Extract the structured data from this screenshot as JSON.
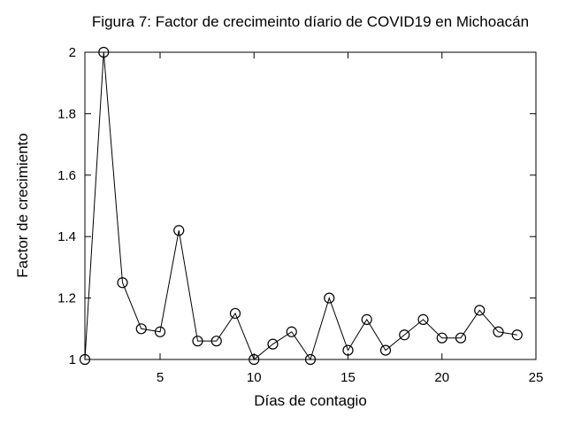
{
  "chart_data": {
    "type": "line",
    "title": "Figura 7: Factor de crecimeinto díario de COVID19 en Michoacán",
    "xlabel": "Días de contagio",
    "ylabel": "Factor de crecimiento",
    "xlim": [
      1,
      25
    ],
    "ylim": [
      1,
      2
    ],
    "xticks": [
      5,
      10,
      15,
      20,
      25
    ],
    "yticks": [
      1,
      1.2,
      1.4,
      1.6,
      1.8,
      2
    ],
    "ytick_labels": [
      "1",
      "1.2",
      "1.4",
      "1.6",
      "1.8",
      "2"
    ],
    "grid": false,
    "marker": "circle",
    "line_color": "#000000",
    "x": [
      1,
      2,
      3,
      4,
      5,
      6,
      7,
      8,
      9,
      10,
      11,
      12,
      13,
      14,
      15,
      16,
      17,
      18,
      19,
      20,
      21,
      22,
      23,
      24
    ],
    "values": [
      1.0,
      2.0,
      1.25,
      1.1,
      1.09,
      1.42,
      1.06,
      1.06,
      1.15,
      1.0,
      1.05,
      1.09,
      1.0,
      1.2,
      1.03,
      1.13,
      1.03,
      1.08,
      1.13,
      1.07,
      1.07,
      1.16,
      1.09,
      1.08
    ]
  }
}
